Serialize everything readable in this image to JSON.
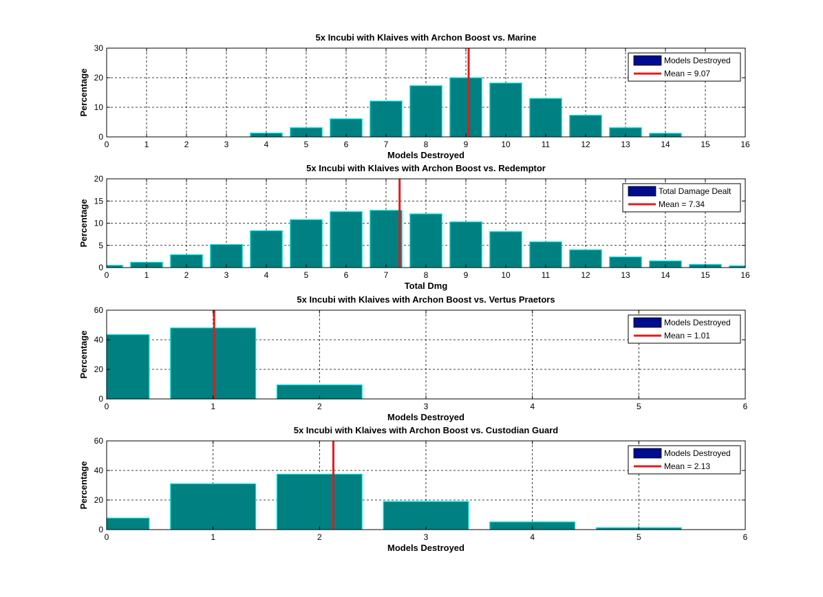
{
  "colors": {
    "bar_fill": "#008080",
    "bar_edge": "#00E5E5",
    "mean_line": "#E31A1C",
    "legend_patch": "#000C8F",
    "grid": "#000000",
    "background": "#FFFFFF"
  },
  "chart_data": [
    {
      "type": "bar",
      "title": "5x Incubi with Klaives with Archon Boost vs. Marine",
      "xlabel": "Models Destroyed",
      "ylabel": "Percentage",
      "xlim": [
        0,
        16
      ],
      "ylim": [
        0,
        30
      ],
      "xticks": [
        0,
        1,
        2,
        3,
        4,
        5,
        6,
        7,
        8,
        9,
        10,
        11,
        12,
        13,
        14,
        15,
        16
      ],
      "yticks": [
        0,
        10,
        20,
        30
      ],
      "bar_width": 0.8,
      "x": [
        4,
        5,
        6,
        7,
        8,
        9,
        10,
        11,
        12,
        13,
        14
      ],
      "values": [
        1.3,
        3.1,
        6.1,
        12.1,
        17.3,
        20.0,
        18.2,
        13.0,
        7.3,
        3.1,
        1.2
      ],
      "mean": 9.07,
      "legend": {
        "bar_label": "Models Destroyed",
        "mean_label": "Mean = 9.07",
        "position": "top-right"
      },
      "grid": true
    },
    {
      "type": "bar",
      "title": "5x Incubi with Klaives with Archon Boost vs. Redemptor",
      "xlabel": "Total Dmg",
      "ylabel": "Percentage",
      "xlim": [
        0,
        16
      ],
      "ylim": [
        0,
        20
      ],
      "xticks": [
        0,
        1,
        2,
        3,
        4,
        5,
        6,
        7,
        8,
        9,
        10,
        11,
        12,
        13,
        14,
        15,
        16
      ],
      "yticks": [
        0,
        5,
        10,
        15,
        20
      ],
      "bar_width": 0.8,
      "x": [
        0,
        1,
        2,
        3,
        4,
        5,
        6,
        7,
        8,
        9,
        10,
        11,
        12,
        13,
        14,
        15,
        16
      ],
      "values": [
        0.5,
        1.2,
        2.9,
        5.2,
        8.3,
        10.8,
        12.6,
        12.9,
        12.1,
        10.3,
        8.1,
        5.8,
        4.0,
        2.4,
        1.5,
        0.7,
        0.4
      ],
      "mean": 7.34,
      "legend": {
        "bar_label": "Total Damage Dealt",
        "mean_label": "Mean = 7.34",
        "position": "top-right"
      },
      "grid": true
    },
    {
      "type": "bar",
      "title": "5x Incubi with Klaives with Archon Boost vs. Vertus Praetors",
      "xlabel": "Models Destroyed",
      "ylabel": "Percentage",
      "xlim": [
        0,
        6
      ],
      "ylim": [
        0,
        60
      ],
      "xticks": [
        0,
        1,
        2,
        3,
        4,
        5,
        6
      ],
      "yticks": [
        0,
        20,
        40,
        60
      ],
      "bar_width": 0.8,
      "x": [
        0,
        1,
        2
      ],
      "values": [
        43.5,
        48.0,
        9.5
      ],
      "mean": 1.01,
      "legend": {
        "bar_label": "Models Destroyed",
        "mean_label": "Mean = 1.01",
        "position": "top-right"
      },
      "grid": true
    },
    {
      "type": "bar",
      "title": "5x Incubi with Klaives with Archon Boost vs. Custodian Guard",
      "xlabel": "Models Destroyed",
      "ylabel": "Percentage",
      "xlim": [
        0,
        6
      ],
      "ylim": [
        0,
        60
      ],
      "xticks": [
        0,
        1,
        2,
        3,
        4,
        5,
        6
      ],
      "yticks": [
        0,
        20,
        40,
        60
      ],
      "bar_width": 0.8,
      "x": [
        0,
        1,
        2,
        3,
        4,
        5
      ],
      "values": [
        7.8,
        31.0,
        37.5,
        19.0,
        5.2,
        1.3
      ],
      "mean": 2.13,
      "legend": {
        "bar_label": "Models Destroyed",
        "mean_label": "Mean = 2.13",
        "position": "top-right"
      },
      "grid": true
    }
  ]
}
